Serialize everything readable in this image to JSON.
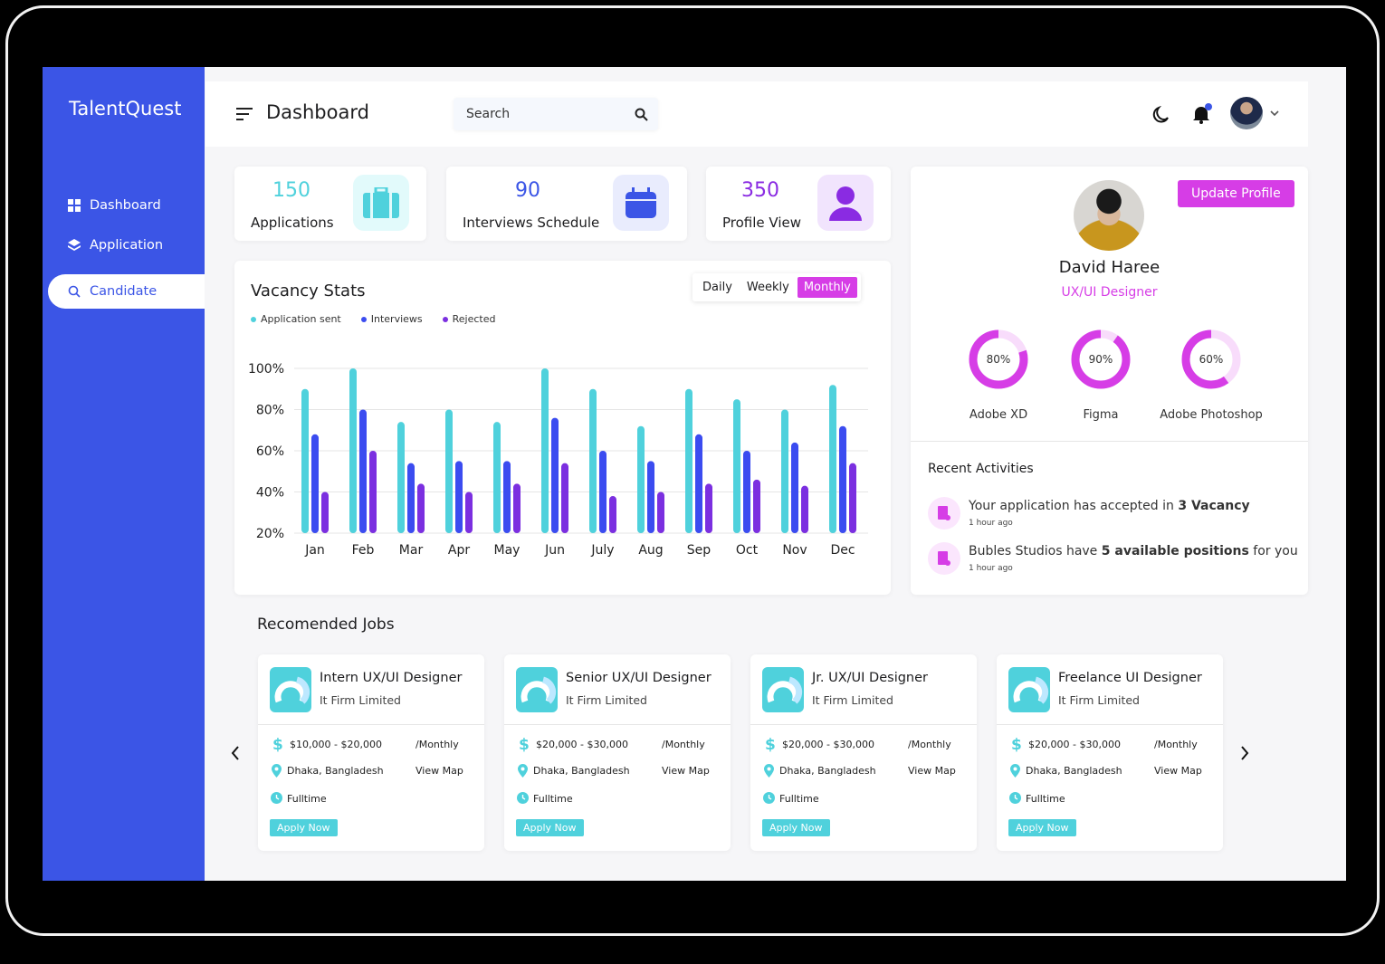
{
  "app": {
    "name": "TalentQuest"
  },
  "sidebar": {
    "items": [
      {
        "label": "Dashboard",
        "icon": "grid-icon"
      },
      {
        "label": "Application",
        "icon": "layers-icon"
      },
      {
        "label": "Candidate",
        "icon": "search-user-icon",
        "active": true
      }
    ]
  },
  "header": {
    "title": "Dashboard",
    "search_placeholder": "Search"
  },
  "stats": [
    {
      "value": "150",
      "label": "Applications",
      "color": "#4fd1dc",
      "icon": "briefcase-icon"
    },
    {
      "value": "90",
      "label": "Interviews Schedule",
      "color": "#3b55e6",
      "icon": "calendar-icon"
    },
    {
      "value": "350",
      "label": "Profile View",
      "color": "#8a2be2",
      "icon": "user-icon"
    }
  ],
  "vacancy": {
    "title": "Vacancy Stats",
    "periods": [
      "Daily",
      "Weekly",
      "Monthly"
    ],
    "selected": "Monthly"
  },
  "chart_data": {
    "type": "bar",
    "categories": [
      "Jan",
      "Feb",
      "Mar",
      "Apr",
      "May",
      "Jun",
      "July",
      "Aug",
      "Sep",
      "Oct",
      "Nov",
      "Dec"
    ],
    "series": [
      {
        "name": "Application sent",
        "color": "#4fd1dc",
        "values": [
          90,
          100,
          74,
          80,
          74,
          100,
          90,
          72,
          90,
          85,
          80,
          92
        ]
      },
      {
        "name": "Interviews",
        "color": "#3b4cf0",
        "values": [
          68,
          80,
          54,
          55,
          55,
          76,
          60,
          55,
          68,
          60,
          64,
          72
        ]
      },
      {
        "name": "Rejected",
        "color": "#7b2fe0",
        "values": [
          40,
          60,
          44,
          40,
          44,
          54,
          38,
          40,
          44,
          46,
          43,
          54
        ]
      }
    ],
    "yticks": [
      "100%",
      "80%",
      "60%",
      "40%",
      "20%"
    ],
    "ylim": [
      20,
      100
    ],
    "grid": true,
    "legend": "top-left"
  },
  "profile": {
    "name": "David Haree",
    "role": "UX/UI Designer",
    "update_label": "Update Profile",
    "skills": [
      {
        "name": "Adobe XD",
        "value": 80,
        "label": "80%"
      },
      {
        "name": "Figma",
        "value": 90,
        "label": "90%"
      },
      {
        "name": "Adobe Photoshop",
        "value": 60,
        "label": "60%"
      }
    ]
  },
  "activities": {
    "title": "Recent Activities",
    "items": [
      {
        "pre": "Your application has accepted in ",
        "bold": "3 Vacancy",
        "post": "",
        "time": "1 hour ago"
      },
      {
        "pre": "Bubles Studios have ",
        "bold": "5 available positions",
        "post": " for you",
        "time": "1 hour ago"
      }
    ]
  },
  "jobs": {
    "title": "Recomended Jobs",
    "items": [
      {
        "title": "Intern UX/UI Designer",
        "company": "It Firm Limited",
        "salary": "$10,000 - $20,000",
        "period": "/Monthly",
        "location": "Dhaka, Bangladesh",
        "map": "View Map",
        "type": "Fulltime",
        "apply": "Apply Now"
      },
      {
        "title": "Senior UX/UI Designer",
        "company": "It Firm Limited",
        "salary": "$20,000 - $30,000",
        "period": "/Monthly",
        "location": "Dhaka, Bangladesh",
        "map": "View Map",
        "type": "Fulltime",
        "apply": "Apply Now"
      },
      {
        "title": "Jr. UX/UI Designer",
        "company": "It Firm Limited",
        "salary": "$20,000 - $30,000",
        "period": "/Monthly",
        "location": "Dhaka, Bangladesh",
        "map": "View Map",
        "type": "Fulltime",
        "apply": "Apply Now"
      },
      {
        "title": "Freelance UI Designer",
        "company": "It Firm Limited",
        "salary": "$20,000 - $30,000",
        "period": "/Monthly",
        "location": "Dhaka, Bangladesh",
        "map": "View Map",
        "type": "Fulltime",
        "apply": "Apply Now"
      }
    ]
  }
}
